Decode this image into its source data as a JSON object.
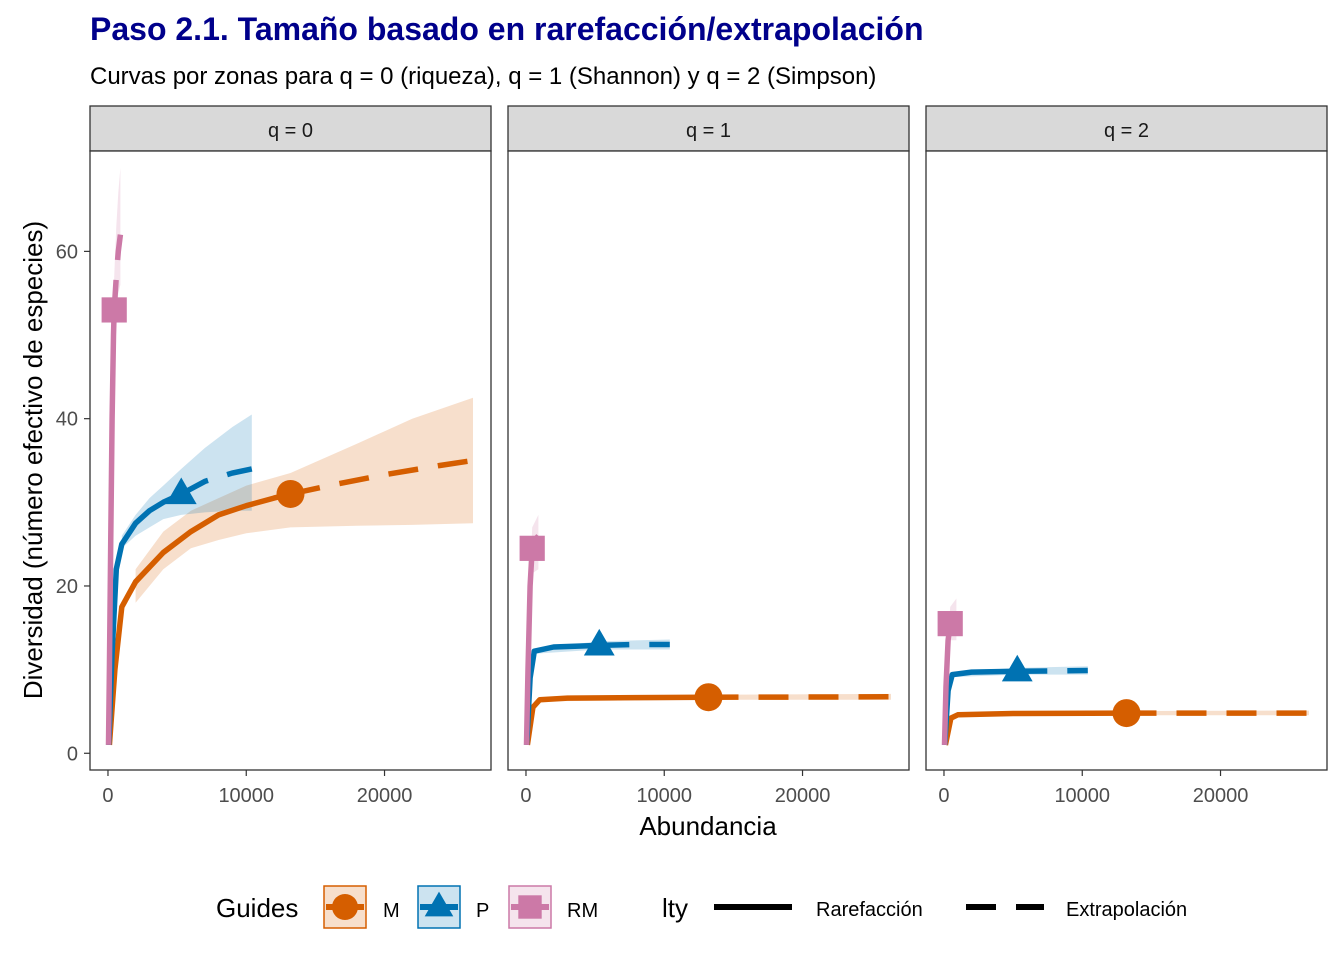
{
  "title": "Paso 2.1. Tamaño basado en rarefacción/extrapolación",
  "subtitle": "Curvas por zonas para q = 0 (riqueza), q = 1 (Shannon) y q = 2 (Simpson)",
  "colors": {
    "title": "#00008B",
    "strip_bg": "#D9D9D9",
    "M": "#D55E00",
    "P": "#0072B2",
    "RM": "#CC79A7"
  },
  "chart_data": {
    "type": "line",
    "xlabel": "Abundancia",
    "ylabel": "Diversidad (número efectivo de especies)",
    "xlim": [
      -1300,
      27700
    ],
    "ylim": [
      -2,
      72
    ],
    "x_ticks": [
      0,
      10000,
      20000
    ],
    "x_tick_labels": [
      "0",
      "10000",
      "20000"
    ],
    "y_ticks": [
      0,
      20,
      40,
      60
    ],
    "y_tick_labels": [
      "0",
      "20",
      "40",
      "60"
    ],
    "grid": false,
    "legend": {
      "position": "bottom",
      "color_title": "Guides",
      "lty_title": "lty",
      "groups": [
        {
          "name": "M",
          "marker": "circle"
        },
        {
          "name": "P",
          "marker": "triangle"
        },
        {
          "name": "RM",
          "marker": "square"
        }
      ],
      "linetypes": [
        {
          "name": "Rarefacción",
          "style": "solid"
        },
        {
          "name": "Extrapolación",
          "style": "dashed"
        }
      ]
    },
    "panels": [
      {
        "label": "q = 0",
        "series": [
          {
            "name": "M",
            "observed": [
              13200,
              31
            ],
            "rarefaction": [
              [
                100,
                1
              ],
              [
                500,
                10
              ],
              [
                1000,
                17.5
              ],
              [
                2000,
                20.5
              ],
              [
                4000,
                24
              ],
              [
                6000,
                26.5
              ],
              [
                8000,
                28.5
              ],
              [
                10000,
                29.6
              ],
              [
                12000,
                30.5
              ],
              [
                13200,
                31
              ]
            ],
            "extrapolation": [
              [
                13200,
                31
              ],
              [
                16000,
                32
              ],
              [
                20000,
                33.3
              ],
              [
                24000,
                34.4
              ],
              [
                26400,
                35
              ]
            ],
            "ci_lower": [
              [
                2000,
                18
              ],
              [
                4000,
                22
              ],
              [
                6000,
                24.5
              ],
              [
                8000,
                25.5
              ],
              [
                10000,
                26.3
              ],
              [
                13200,
                27
              ],
              [
                18000,
                27.2
              ],
              [
                22000,
                27.3
              ],
              [
                26400,
                27.5
              ]
            ],
            "ci_upper": [
              [
                2000,
                22
              ],
              [
                4000,
                26.5
              ],
              [
                6000,
                29
              ],
              [
                8000,
                30.5
              ],
              [
                10000,
                32
              ],
              [
                13200,
                33.5
              ],
              [
                18000,
                37
              ],
              [
                22000,
                40
              ],
              [
                26400,
                42.5
              ]
            ]
          },
          {
            "name": "P",
            "observed": [
              5300,
              31
            ],
            "rarefaction": [
              [
                50,
                1
              ],
              [
                300,
                12
              ],
              [
                600,
                22
              ],
              [
                1000,
                25
              ],
              [
                2000,
                27.5
              ],
              [
                3000,
                29
              ],
              [
                4000,
                30
              ],
              [
                5300,
                31
              ]
            ],
            "extrapolation": [
              [
                5300,
                31
              ],
              [
                7000,
                32.5
              ],
              [
                9000,
                33.5
              ],
              [
                10400,
                34
              ]
            ],
            "ci_lower": [
              [
                1000,
                24.5
              ],
              [
                2000,
                26
              ],
              [
                3000,
                27
              ],
              [
                4000,
                28
              ],
              [
                5300,
                28.5
              ],
              [
                7000,
                28.8
              ],
              [
                9000,
                29
              ],
              [
                10400,
                29
              ]
            ],
            "ci_upper": [
              [
                1000,
                26
              ],
              [
                2000,
                28.5
              ],
              [
                3000,
                30.5
              ],
              [
                4000,
                32
              ],
              [
                5300,
                34
              ],
              [
                7000,
                36.5
              ],
              [
                9000,
                39
              ],
              [
                10400,
                40.5
              ]
            ]
          },
          {
            "name": "RM",
            "observed": [
              450,
              53
            ],
            "rarefaction": [
              [
                40,
                1
              ],
              [
                100,
                10
              ],
              [
                200,
                25
              ],
              [
                300,
                40
              ],
              [
                400,
                50
              ],
              [
                450,
                53
              ]
            ],
            "extrapolation": [
              [
                450,
                53
              ],
              [
                600,
                57
              ],
              [
                750,
                60
              ],
              [
                900,
                62
              ]
            ],
            "ci_lower": [
              [
                200,
                20
              ],
              [
                300,
                35
              ],
              [
                450,
                48
              ],
              [
                600,
                52
              ],
              [
                750,
                55
              ],
              [
                900,
                56
              ]
            ],
            "ci_upper": [
              [
                200,
                30
              ],
              [
                300,
                45
              ],
              [
                450,
                57
              ],
              [
                600,
                63
              ],
              [
                750,
                67
              ],
              [
                900,
                70
              ]
            ]
          }
        ]
      },
      {
        "label": "q = 1",
        "series": [
          {
            "name": "M",
            "observed": [
              13200,
              6.7
            ],
            "rarefaction": [
              [
                100,
                1
              ],
              [
                500,
                5.5
              ],
              [
                1000,
                6.4
              ],
              [
                3000,
                6.6
              ],
              [
                8000,
                6.65
              ],
              [
                13200,
                6.7
              ]
            ],
            "extrapolation": [
              [
                13200,
                6.7
              ],
              [
                18000,
                6.72
              ],
              [
                22000,
                6.73
              ],
              [
                26400,
                6.75
              ]
            ],
            "ci_lower": [
              [
                1000,
                6.2
              ],
              [
                13200,
                6.4
              ],
              [
                26400,
                6.4
              ]
            ],
            "ci_upper": [
              [
                1000,
                6.6
              ],
              [
                13200,
                7
              ],
              [
                26400,
                7.1
              ]
            ]
          },
          {
            "name": "P",
            "observed": [
              5300,
              12.9
            ],
            "rarefaction": [
              [
                50,
                1
              ],
              [
                300,
                9
              ],
              [
                600,
                12.2
              ],
              [
                2000,
                12.7
              ],
              [
                5300,
                12.9
              ]
            ],
            "extrapolation": [
              [
                5300,
                12.9
              ],
              [
                8000,
                13
              ],
              [
                10400,
                13
              ]
            ],
            "ci_lower": [
              [
                600,
                11.9
              ],
              [
                5300,
                12.4
              ],
              [
                10400,
                12.4
              ]
            ],
            "ci_upper": [
              [
                600,
                12.5
              ],
              [
                5300,
                13.4
              ],
              [
                10400,
                13.6
              ]
            ]
          },
          {
            "name": "RM",
            "observed": [
              450,
              24.5
            ],
            "rarefaction": [
              [
                40,
                1
              ],
              [
                150,
                10
              ],
              [
                300,
                20
              ],
              [
                450,
                24.5
              ]
            ],
            "extrapolation": [
              [
                450,
                24.5
              ],
              [
                650,
                25.5
              ],
              [
                900,
                26
              ]
            ],
            "ci_lower": [
              [
                200,
                14
              ],
              [
                450,
                21.5
              ],
              [
                900,
                22
              ]
            ],
            "ci_upper": [
              [
                200,
                17
              ],
              [
                450,
                27
              ],
              [
                900,
                28.5
              ]
            ]
          }
        ]
      },
      {
        "label": "q = 2",
        "series": [
          {
            "name": "M",
            "observed": [
              13200,
              4.8
            ],
            "rarefaction": [
              [
                100,
                1
              ],
              [
                500,
                4.2
              ],
              [
                1000,
                4.6
              ],
              [
                5000,
                4.75
              ],
              [
                13200,
                4.8
              ]
            ],
            "extrapolation": [
              [
                13200,
                4.8
              ],
              [
                18000,
                4.8
              ],
              [
                22000,
                4.8
              ],
              [
                26400,
                4.8
              ]
            ],
            "ci_lower": [
              [
                1000,
                4.4
              ],
              [
                13200,
                4.55
              ],
              [
                26400,
                4.55
              ]
            ],
            "ci_upper": [
              [
                1000,
                4.8
              ],
              [
                13200,
                5.05
              ],
              [
                26400,
                5.1
              ]
            ]
          },
          {
            "name": "P",
            "observed": [
              5300,
              9.8
            ],
            "rarefaction": [
              [
                50,
                1
              ],
              [
                300,
                7.5
              ],
              [
                600,
                9.4
              ],
              [
                2000,
                9.7
              ],
              [
                5300,
                9.8
              ]
            ],
            "extrapolation": [
              [
                5300,
                9.8
              ],
              [
                8000,
                9.85
              ],
              [
                10400,
                9.9
              ]
            ],
            "ci_lower": [
              [
                600,
                9.1
              ],
              [
                5300,
                9.4
              ],
              [
                10400,
                9.4
              ]
            ],
            "ci_upper": [
              [
                600,
                9.7
              ],
              [
                5300,
                10.2
              ],
              [
                10400,
                10.4
              ]
            ]
          },
          {
            "name": "RM",
            "observed": [
              450,
              15.5
            ],
            "rarefaction": [
              [
                40,
                1
              ],
              [
                150,
                8
              ],
              [
                300,
                13.5
              ],
              [
                450,
                15.5
              ]
            ],
            "extrapolation": [
              [
                450,
                15.5
              ],
              [
                700,
                15.8
              ],
              [
                900,
                16
              ]
            ],
            "ci_lower": [
              [
                200,
                9
              ],
              [
                450,
                13.5
              ],
              [
                900,
                13.5
              ]
            ],
            "ci_upper": [
              [
                200,
                11
              ],
              [
                450,
                17.5
              ],
              [
                900,
                18.5
              ]
            ]
          }
        ]
      }
    ]
  }
}
